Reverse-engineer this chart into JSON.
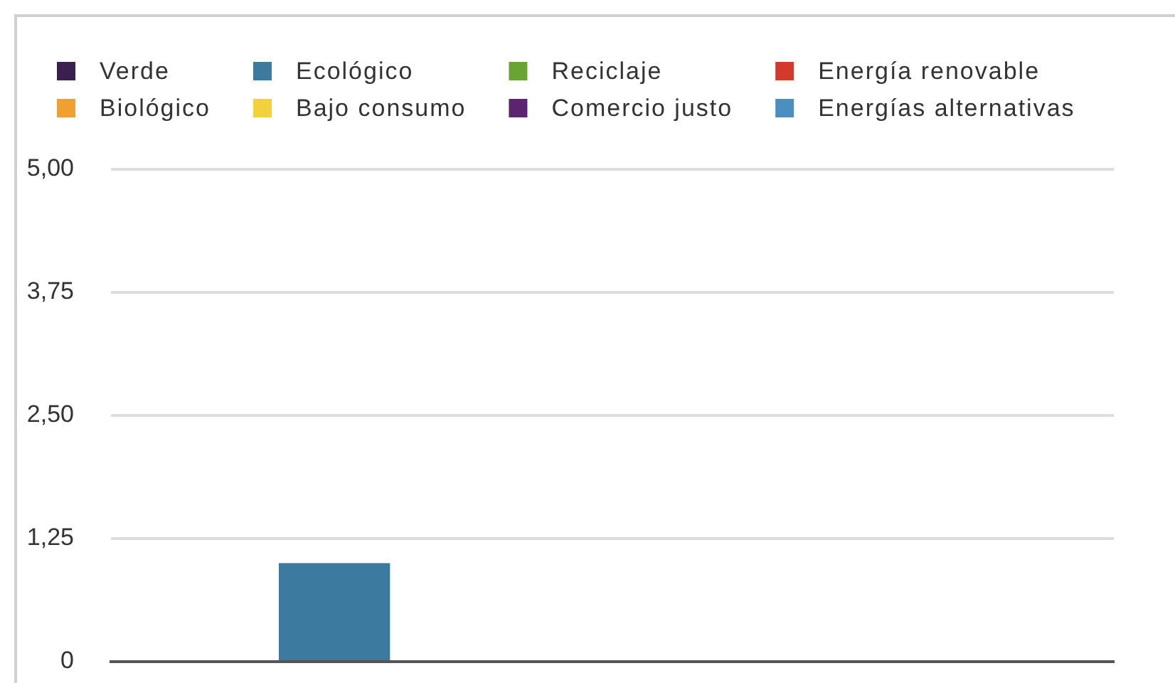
{
  "chart_data": {
    "type": "bar",
    "categories": [
      null
    ],
    "series": [
      {
        "name": "Verde",
        "color": "#3b1f4f",
        "values": [
          0
        ]
      },
      {
        "name": "Ecológico",
        "color": "#3d7a9f",
        "values": [
          1
        ]
      },
      {
        "name": "Reciclaje",
        "color": "#6aa534",
        "values": [
          0
        ]
      },
      {
        "name": "Energía renovable",
        "color": "#d33a2c",
        "values": [
          0
        ]
      },
      {
        "name": "Biológico",
        "color": "#f0a030",
        "values": [
          0
        ]
      },
      {
        "name": "Bajo consumo",
        "color": "#f3d13a",
        "values": [
          0
        ]
      },
      {
        "name": "Comercio justo",
        "color": "#5c2470",
        "values": [
          0
        ]
      },
      {
        "name": "Energías alternativas",
        "color": "#4a8fbf",
        "values": [
          0
        ]
      }
    ],
    "ylim": [
      0,
      5
    ],
    "yticks": [
      0,
      {
        "value": 1.25,
        "label": "1,25"
      },
      {
        "value": 2.5,
        "label": "2,50"
      },
      {
        "value": 3.75,
        "label": "3,75"
      },
      {
        "value": 5,
        "label": "5,00"
      }
    ],
    "grid": "y",
    "legend": "top",
    "tick_labels": "y"
  }
}
